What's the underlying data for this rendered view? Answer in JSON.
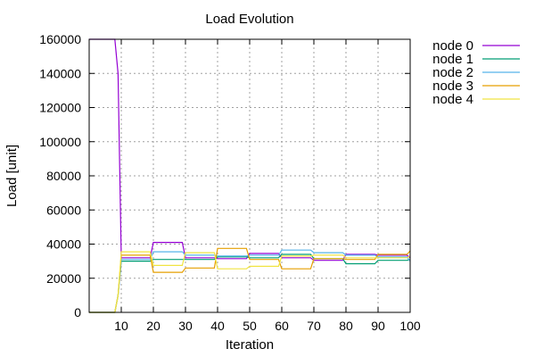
{
  "chart_data": {
    "type": "line",
    "title": "Load Evolution",
    "xlabel": "Iteration",
    "ylabel": "Load [unit]",
    "xlim": [
      0,
      100
    ],
    "ylim": [
      0,
      160000
    ],
    "xticks": [
      10,
      20,
      30,
      40,
      50,
      60,
      70,
      80,
      90,
      100
    ],
    "yticks": [
      0,
      20000,
      40000,
      60000,
      80000,
      100000,
      120000,
      140000,
      160000
    ],
    "grid": true,
    "legend_position": "outside-right-top",
    "series": [
      {
        "name": "node 0",
        "color": "#9400d3",
        "x": [
          0,
          8,
          9,
          10,
          19,
          20,
          29,
          30,
          39,
          40,
          49,
          50,
          59,
          60,
          69,
          70,
          79,
          80,
          89,
          90,
          99,
          100
        ],
        "y": [
          160000,
          160000,
          140000,
          32000,
          32000,
          41000,
          41000,
          32000,
          32000,
          31500,
          31500,
          34500,
          34500,
          32000,
          32000,
          30500,
          30500,
          34000,
          34000,
          33500,
          33500,
          32000
        ]
      },
      {
        "name": "node 1",
        "color": "#009e73",
        "x": [
          0,
          8,
          9,
          10,
          19,
          20,
          29,
          30,
          39,
          40,
          49,
          50,
          59,
          60,
          69,
          70,
          79,
          80,
          89,
          90,
          99,
          100
        ],
        "y": [
          0,
          0,
          10000,
          30000,
          30000,
          31000,
          31000,
          31000,
          31000,
          32500,
          32500,
          32000,
          32000,
          34000,
          34000,
          31500,
          31500,
          28500,
          28500,
          30500,
          30500,
          31000
        ]
      },
      {
        "name": "node 2",
        "color": "#56b4e9",
        "x": [
          0,
          8,
          9,
          10,
          19,
          20,
          29,
          30,
          39,
          40,
          49,
          50,
          59,
          60,
          69,
          70,
          79,
          80,
          89,
          90,
          99,
          100
        ],
        "y": [
          0,
          0,
          10000,
          31000,
          31000,
          35500,
          35500,
          33500,
          33500,
          33000,
          33000,
          33500,
          33500,
          36500,
          36500,
          35000,
          35000,
          33500,
          33500,
          32500,
          32500,
          30000
        ]
      },
      {
        "name": "node 3",
        "color": "#e69f00",
        "x": [
          0,
          8,
          9,
          10,
          19,
          20,
          29,
          30,
          39,
          40,
          49,
          50,
          59,
          60,
          69,
          70,
          79,
          80,
          89,
          90,
          99,
          100
        ],
        "y": [
          0,
          0,
          10000,
          33500,
          33500,
          23500,
          23500,
          26000,
          26000,
          37500,
          37500,
          31000,
          31000,
          25500,
          25500,
          31500,
          31500,
          31000,
          31000,
          34000,
          34000,
          36000
        ]
      },
      {
        "name": "node 4",
        "color": "#f0e442",
        "x": [
          0,
          8,
          9,
          10,
          19,
          20,
          29,
          30,
          39,
          40,
          49,
          50,
          59,
          60,
          69,
          70,
          79,
          80,
          89,
          90,
          99,
          100
        ],
        "y": [
          0,
          0,
          10000,
          35500,
          35500,
          27500,
          27500,
          35000,
          35000,
          25500,
          25500,
          27000,
          27000,
          33000,
          33000,
          33500,
          33500,
          32000,
          32000,
          32000,
          32000,
          33000
        ]
      }
    ]
  }
}
